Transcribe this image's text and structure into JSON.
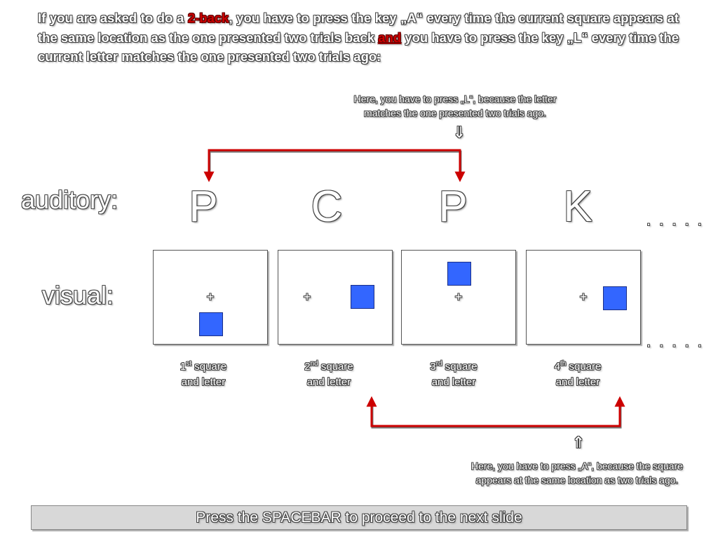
{
  "instructions": {
    "part1": "If you are asked to do a ",
    "highlight": "2-back",
    "part2": ", you have to press the key „A“ every time the current square appears at the same location as the one presented two trials back ",
    "and_word": "and",
    "part3": " you have to press the key „L“ every time the current letter matches the one presented two trials ago:"
  },
  "note_letter": {
    "line1": "Here, you have to press „L“, because the letter",
    "line2": "matches the one presented two trials ago."
  },
  "note_square": {
    "line1": "Here, you have to press „A“, because the square",
    "line2": "appears at the same location as two trials ago."
  },
  "labels": {
    "auditory": "auditory:",
    "visual": "visual:"
  },
  "letters": [
    "P",
    "C",
    "P",
    "K"
  ],
  "ellipsis": ". . . . .",
  "fixation": "+",
  "captions": [
    {
      "ordinal": "1",
      "suffix": "st",
      "word": "square",
      "line2": "and letter"
    },
    {
      "ordinal": "2",
      "suffix": "nd",
      "word": "square",
      "line2": "and letter"
    },
    {
      "ordinal": "3",
      "suffix": "rd",
      "word": "square",
      "line2": "and letter"
    },
    {
      "ordinal": "4",
      "suffix": "th",
      "word": "square",
      "line2": "and letter"
    }
  ],
  "squares": [
    {
      "position": "below-fixation"
    },
    {
      "position": "right-of-fixation"
    },
    {
      "position": "above-fixation"
    },
    {
      "position": "right-of-fixation"
    }
  ],
  "arrows": {
    "down": "⇓",
    "up": "⇑"
  },
  "colors": {
    "square": "#3366ff",
    "highlight": "#cc0000",
    "connector": "#cc0000"
  },
  "footer": {
    "prompt": "Press the SPACEBAR to proceed to the next slide"
  }
}
